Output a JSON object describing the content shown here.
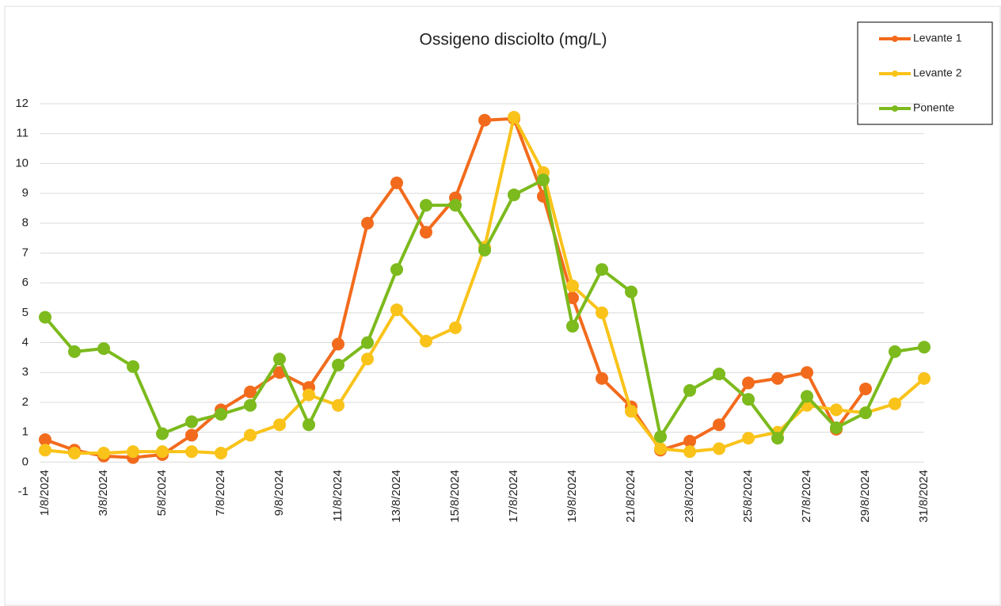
{
  "chart_data": {
    "type": "line",
    "title": "Ossigeno disciolto (mg/L)",
    "categories": [
      "1/8/2024",
      null,
      "3/8/2024",
      null,
      "5/8/2024",
      null,
      "7/8/2024",
      null,
      "9/8/2024",
      null,
      "11/8/2024",
      null,
      "13/8/2024",
      null,
      "15/8/2024",
      null,
      "17/8/2024",
      null,
      "19/8/2024",
      null,
      "21/8/2024",
      null,
      "23/8/2024",
      null,
      "25/8/2024",
      null,
      "27/8/2024",
      null,
      "29/8/2024",
      null,
      "31/8/2024"
    ],
    "series": [
      {
        "name": "Levante 1",
        "color": "#f26b1d",
        "values": [
          0.75,
          0.4,
          0.2,
          0.15,
          0.25,
          0.9,
          1.75,
          2.35,
          3.0,
          2.5,
          3.95,
          8.0,
          9.35,
          7.7,
          8.85,
          11.45,
          11.5,
          8.9,
          5.5,
          2.8,
          1.85,
          0.4,
          0.7,
          1.25,
          2.65,
          2.8,
          3.0,
          1.1,
          2.45,
          null,
          null
        ]
      },
      {
        "name": "Levante 2",
        "color": "#f9c31a",
        "values": [
          0.4,
          0.3,
          0.3,
          0.35,
          0.35,
          0.35,
          0.3,
          0.9,
          1.25,
          2.25,
          1.9,
          3.45,
          5.1,
          4.05,
          4.5,
          7.2,
          11.55,
          9.7,
          5.9,
          5.0,
          1.7,
          0.45,
          0.35,
          0.45,
          0.8,
          1.0,
          1.9,
          1.75,
          1.65,
          1.95,
          2.8
        ]
      },
      {
        "name": "Ponente",
        "color": "#7cba1d",
        "values": [
          4.85,
          3.7,
          3.8,
          3.2,
          0.95,
          1.35,
          1.6,
          1.9,
          3.45,
          1.25,
          3.25,
          4.0,
          6.45,
          8.6,
          8.6,
          7.1,
          8.95,
          9.45,
          4.55,
          6.45,
          5.7,
          0.85,
          2.4,
          2.95,
          2.1,
          0.8,
          2.2,
          1.15,
          1.65,
          3.7,
          3.85
        ]
      }
    ],
    "ylim": [
      -1,
      12
    ],
    "yticks": [
      -1,
      0,
      1,
      2,
      3,
      4,
      5,
      6,
      7,
      8,
      9,
      10,
      11,
      12
    ],
    "grid": true,
    "legend": "top-right"
  }
}
